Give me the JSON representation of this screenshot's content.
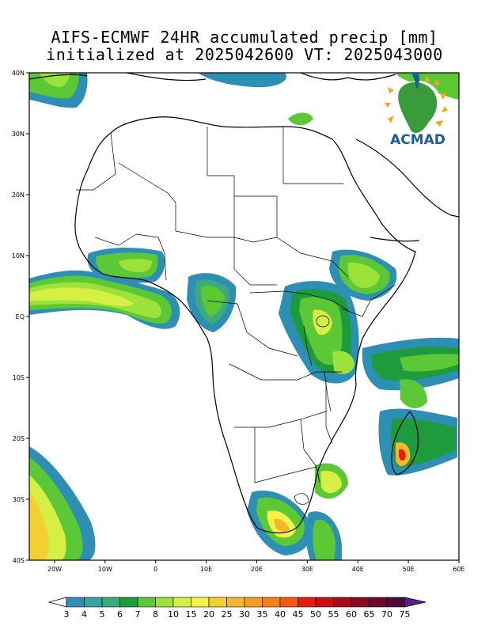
{
  "title": {
    "line1": "AIFS-ECMWF 24HR accumulated precip [mm]",
    "line2": "initialized at 2025042600 VT: 2025043000"
  },
  "logo": {
    "text": "ACMAD",
    "icon": "africa-sun-icon"
  },
  "map": {
    "lon_range": [
      -25,
      60
    ],
    "lat_range": [
      -40,
      40
    ],
    "lat_ticks": [
      {
        "value": 40,
        "label": "40N"
      },
      {
        "value": 30,
        "label": "30N"
      },
      {
        "value": 20,
        "label": "20N"
      },
      {
        "value": 10,
        "label": "10N"
      },
      {
        "value": 0,
        "label": "EQ"
      },
      {
        "value": -10,
        "label": "10S"
      },
      {
        "value": -20,
        "label": "20S"
      },
      {
        "value": -30,
        "label": "30S"
      },
      {
        "value": -40,
        "label": "40S"
      }
    ],
    "lon_ticks": [
      {
        "value": -20,
        "label": "20W"
      },
      {
        "value": -10,
        "label": "10W"
      },
      {
        "value": 0,
        "label": "0"
      },
      {
        "value": 10,
        "label": "10E"
      },
      {
        "value": 20,
        "label": "20E"
      },
      {
        "value": 30,
        "label": "30E"
      },
      {
        "value": 40,
        "label": "40E"
      },
      {
        "value": 50,
        "label": "50E"
      },
      {
        "value": 60,
        "label": "60E"
      }
    ]
  },
  "colorbar": {
    "levels": [
      "3",
      "4",
      "5",
      "6",
      "7",
      "8",
      "10",
      "15",
      "20",
      "25",
      "30",
      "35",
      "40",
      "45",
      "50",
      "55",
      "60",
      "65",
      "70",
      "75"
    ],
    "colors": [
      "#2e8fb4",
      "#37a3a0",
      "#3daa7e",
      "#1e9b3c",
      "#5cc835",
      "#9be23b",
      "#d6ef45",
      "#f5f24a",
      "#f2d030",
      "#f5b82a",
      "#f59f20",
      "#f58218",
      "#f55a10",
      "#e81c0e",
      "#c80f12",
      "#a70b1a",
      "#8a0a24",
      "#6d0a2a",
      "#4f0a3a",
      "#5a1e8c"
    ]
  }
}
